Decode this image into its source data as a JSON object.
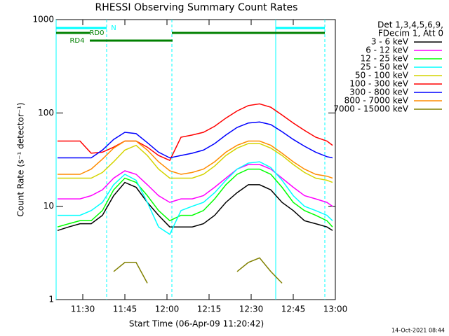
{
  "chart_data": {
    "type": "line",
    "title": "RHESSI Observing Summary Count Rates",
    "xlabel": "Start Time (06-Apr-09 11:20:42)",
    "ylabel": "Count Rate (s⁻¹ detector⁻¹)",
    "legend_header": [
      "Det 1,3,4,5,6,9,",
      "FDecim 1, Att 0"
    ],
    "timestamp": "14-Oct-2021 08:44",
    "log_y": true,
    "legend": "right",
    "xlim": [
      20.5,
      120
    ],
    "ylim": [
      1,
      1000
    ],
    "xticks": [
      {
        "value": 30,
        "label": "11:30"
      },
      {
        "value": 45,
        "label": "11:45"
      },
      {
        "value": 60,
        "label": "12:00"
      },
      {
        "value": 75,
        "label": "12:15"
      },
      {
        "value": 90,
        "label": "12:30"
      },
      {
        "value": 105,
        "label": "12:45"
      },
      {
        "value": 120,
        "label": "13:00"
      }
    ],
    "yticks": [
      1,
      10,
      100,
      1000
    ],
    "x": [
      21,
      25,
      29,
      33,
      37,
      41,
      45,
      49,
      53,
      57,
      61,
      65,
      69,
      73,
      77,
      81,
      85,
      89,
      93,
      97,
      101,
      105,
      109,
      113,
      117,
      119
    ],
    "series": [
      {
        "name": "3 - 6 keV",
        "color": "#000000",
        "values": [
          5.5,
          6,
          6.5,
          6.5,
          8,
          13,
          18,
          16,
          11,
          8,
          6,
          6,
          6,
          6.5,
          8,
          11,
          14,
          17,
          17,
          15,
          11,
          9,
          7,
          6.5,
          6,
          5.5
        ]
      },
      {
        "name": "6 - 12 keV",
        "color": "#ff00ff",
        "values": [
          12,
          12,
          12,
          13,
          15,
          20,
          24,
          22,
          17,
          13,
          11,
          12,
          12,
          13,
          16,
          20,
          25,
          28,
          28,
          25,
          20,
          16,
          13,
          12,
          11,
          10
        ]
      },
      {
        "name": "12 - 25 keV",
        "color": "#00ff00",
        "values": [
          6,
          6.5,
          7,
          7,
          9,
          15,
          20,
          18,
          13,
          9,
          7,
          8,
          8,
          9,
          12,
          17,
          22,
          25,
          25,
          22,
          16,
          11,
          9,
          8,
          7,
          6
        ]
      },
      {
        "name": "25 - 50 keV",
        "color": "#00ffff",
        "values": [
          8,
          8,
          8,
          9,
          11,
          17,
          22,
          19,
          11,
          6,
          5,
          9,
          10,
          11,
          14,
          19,
          25,
          29,
          30,
          26,
          19,
          13,
          10,
          9,
          8,
          7
        ]
      },
      {
        "name": "50 - 100 keV",
        "color": "#d4d400",
        "values": [
          20,
          20,
          20,
          20,
          23,
          30,
          40,
          45,
          35,
          25,
          20,
          20,
          20,
          22,
          27,
          35,
          42,
          47,
          47,
          42,
          35,
          28,
          23,
          20,
          19,
          18
        ]
      },
      {
        "name": "100 - 300 keV",
        "color": "#ff0000",
        "values": [
          50,
          50,
          50,
          37,
          38,
          43,
          50,
          50,
          43,
          35,
          31,
          55,
          58,
          62,
          72,
          88,
          105,
          120,
          125,
          115,
          95,
          78,
          65,
          55,
          50,
          45
        ]
      },
      {
        "name": "300 - 800 keV",
        "color": "#0000ff",
        "values": [
          33,
          33,
          33,
          33,
          40,
          52,
          62,
          60,
          48,
          38,
          33,
          35,
          37,
          40,
          47,
          58,
          70,
          78,
          80,
          75,
          63,
          52,
          44,
          38,
          34,
          33
        ]
      },
      {
        "name": "800 - 7000 keV",
        "color": "#ff8c00",
        "values": [
          22,
          22,
          22,
          25,
          32,
          42,
          50,
          50,
          40,
          30,
          24,
          22,
          23,
          25,
          30,
          38,
          45,
          50,
          50,
          45,
          37,
          30,
          25,
          22,
          21,
          20
        ]
      },
      {
        "name": "7000 - 15000 keV",
        "color": "#808000",
        "values": [
          null,
          null,
          null,
          null,
          null,
          2,
          2.5,
          2.5,
          1.5,
          null,
          null,
          null,
          null,
          null,
          null,
          null,
          2,
          2.5,
          2.8,
          2,
          1.5,
          null,
          null,
          null,
          null,
          null
        ]
      }
    ],
    "flags": [
      {
        "label": "N",
        "color": "#00ffff",
        "intervals": [
          [
            20.5,
            38.5
          ],
          [
            98.75,
            116.25
          ]
        ]
      },
      {
        "label": "RD0",
        "color": "#008000",
        "intervals": [
          [
            20.5,
            32.5
          ],
          [
            61.75,
            116.25
          ]
        ]
      },
      {
        "label": "RD4",
        "color": "#008000",
        "intervals": [
          [
            32.5,
            62
          ]
        ]
      }
    ],
    "vlines": [
      {
        "x": 20.5,
        "style": "solid",
        "color": "#00ffff"
      },
      {
        "x": 38.5,
        "style": "dashed",
        "color": "#00ffff"
      },
      {
        "x": 61.75,
        "style": "dashed",
        "color": "#00ffff"
      },
      {
        "x": 98.75,
        "style": "solid",
        "color": "#00ffff"
      },
      {
        "x": 116.25,
        "style": "dashed",
        "color": "#00ffff"
      }
    ]
  }
}
